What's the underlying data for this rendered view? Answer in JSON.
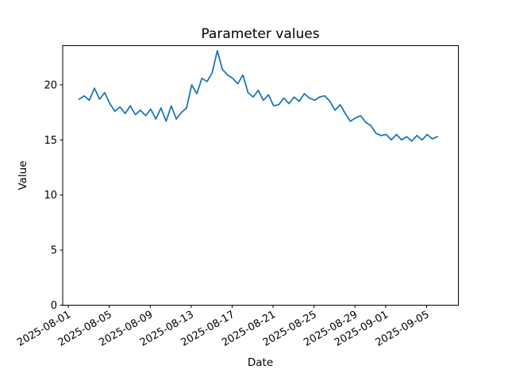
{
  "chart": {
    "title": "Parameter values",
    "xlabel": "Date",
    "ylabel": "Value"
  },
  "chart_data": {
    "type": "line",
    "title": "Parameter values",
    "xlabel": "Date",
    "ylabel": "Value",
    "grid": false,
    "legend": "none",
    "series_color": "#1f77b4",
    "line_width": 1.8,
    "x_start": "2025-08-02",
    "x_step_hours": 12,
    "x_first_day_offset": 1.05,
    "x_step_days": 0.5,
    "xlim_day_offsets": [
      -0.55,
      38.1
    ],
    "ylim": [
      0,
      23.56
    ],
    "ytick_values": [
      0,
      5,
      10,
      15,
      20
    ],
    "xtick_day_offsets": [
      0,
      4,
      8,
      12,
      16,
      20,
      24,
      28,
      31,
      35
    ],
    "xtick_labels": [
      "2025-08-01",
      "2025-08-05",
      "2025-08-09",
      "2025-08-13",
      "2025-08-17",
      "2025-08-21",
      "2025-08-25",
      "2025-08-29",
      "2025-09-01",
      "2025-09-05"
    ],
    "values": [
      18.7,
      19.0,
      18.6,
      19.7,
      18.7,
      19.3,
      18.3,
      17.6,
      18.0,
      17.4,
      18.1,
      17.3,
      17.7,
      17.2,
      17.8,
      16.9,
      17.9,
      16.7,
      18.1,
      16.9,
      17.5,
      17.9,
      20.0,
      19.2,
      20.6,
      20.3,
      21.1,
      23.1,
      21.4,
      20.9,
      20.6,
      20.1,
      20.9,
      19.3,
      18.9,
      19.5,
      18.6,
      19.1,
      18.1,
      18.2,
      18.8,
      18.3,
      18.9,
      18.5,
      19.2,
      18.8,
      18.6,
      18.9,
      19.0,
      18.5,
      17.7,
      18.2,
      17.4,
      16.7,
      17.0,
      17.2,
      16.6,
      16.3,
      15.6,
      15.4,
      15.5,
      15.0,
      15.5,
      15.0,
      15.3,
      14.9,
      15.4,
      15.0,
      15.5,
      15.1,
      15.3
    ]
  }
}
